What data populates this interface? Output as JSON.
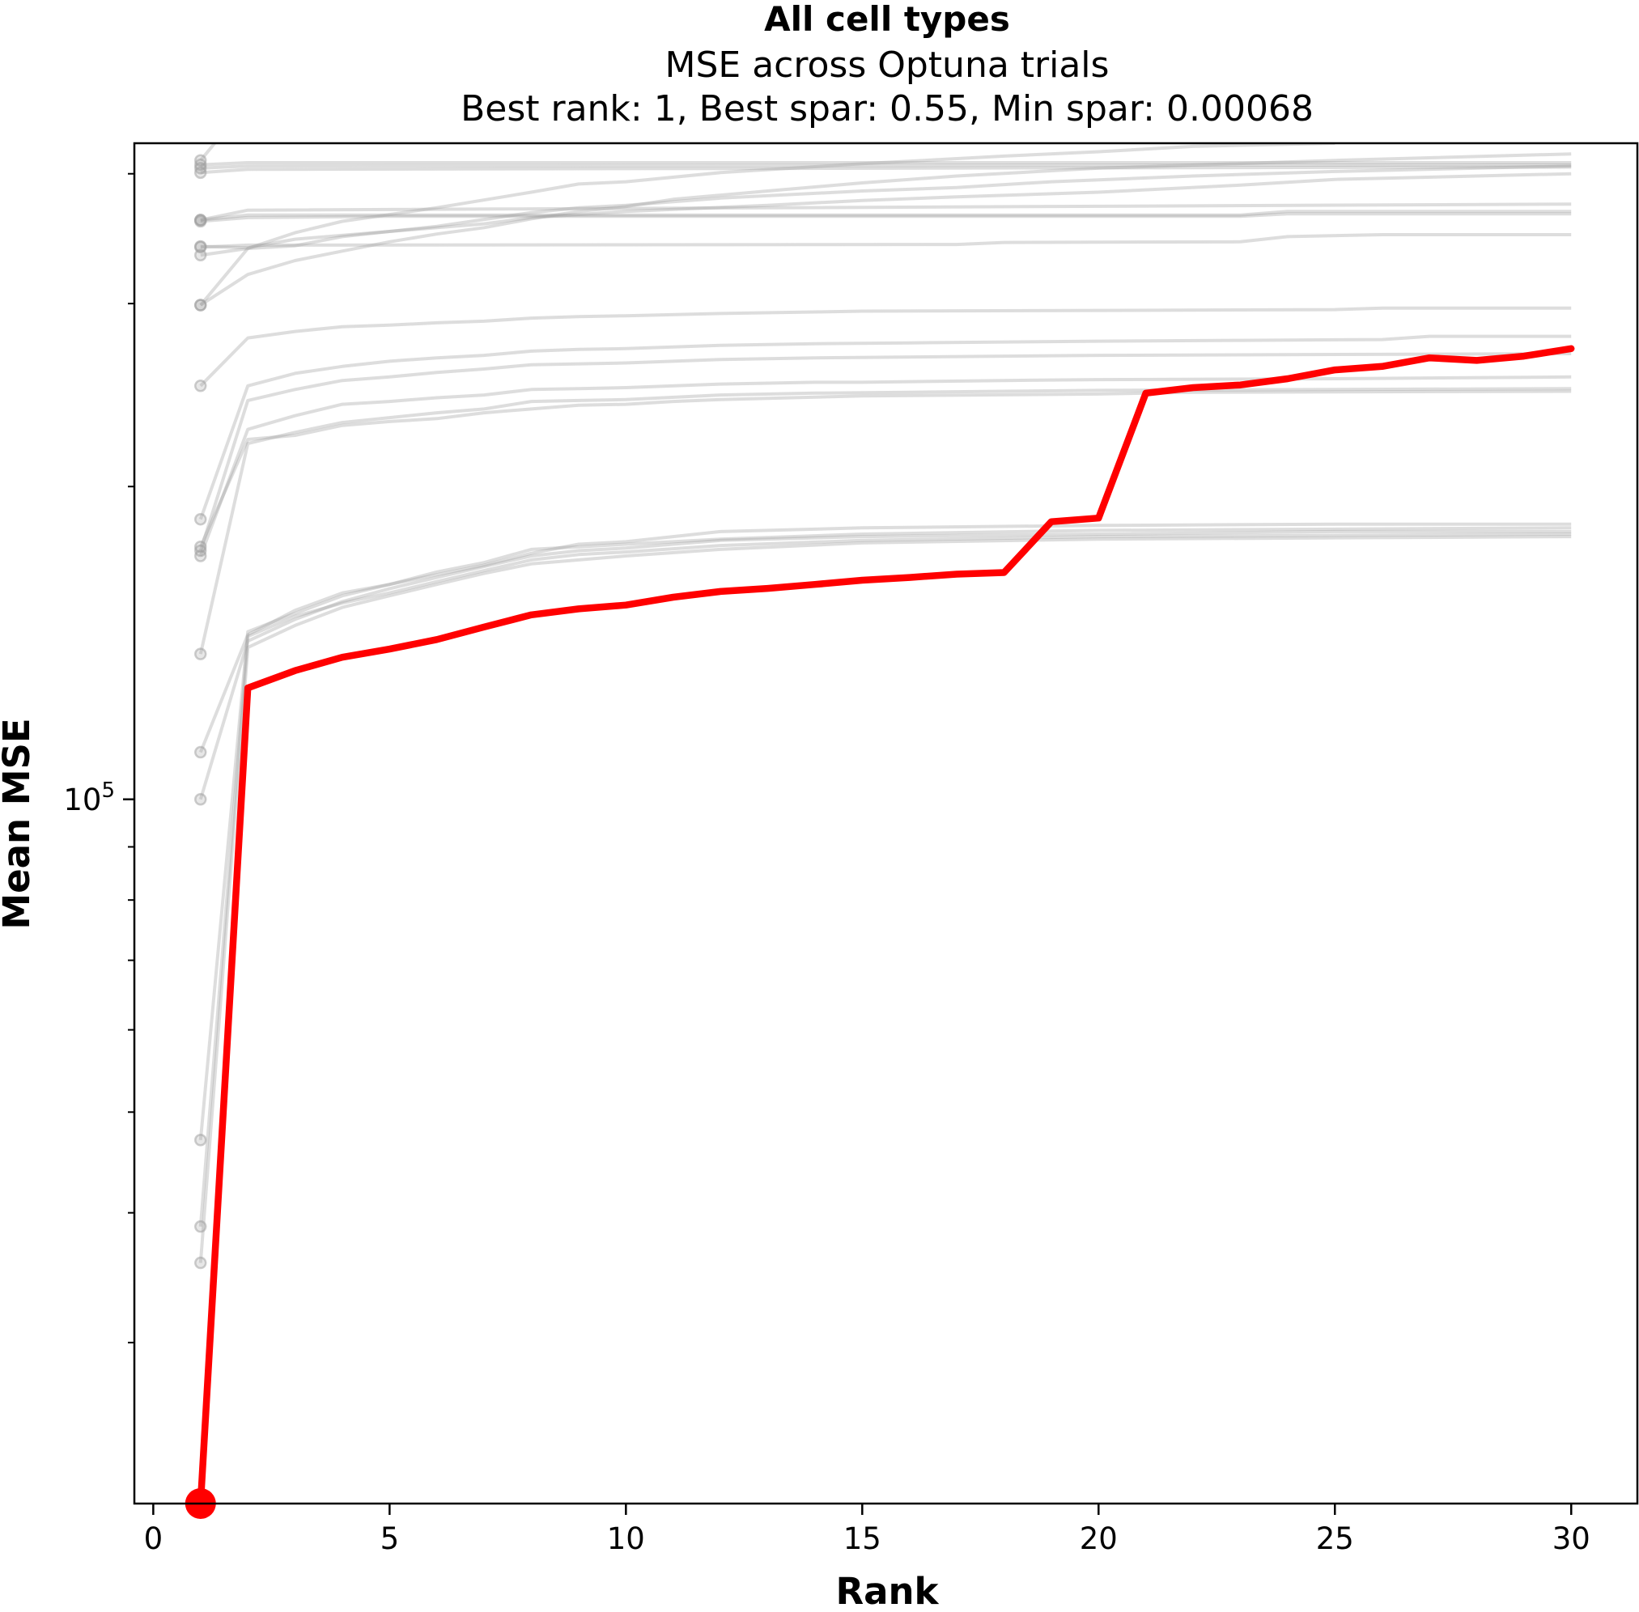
{
  "chart_data": {
    "type": "line",
    "title": "All cell types",
    "subtitle_lines": [
      "MSE across Optuna trials",
      "Best rank: 1, Best spar: 0.55, Min spar: 0.00068"
    ],
    "xlabel": "Rank",
    "ylabel": "Mean MSE",
    "xlim": [
      -0.4,
      31.4
    ],
    "ylim": [
      21000,
      428000
    ],
    "yscale": "log",
    "x_ticks": [
      0,
      5,
      10,
      15,
      20,
      25,
      30
    ],
    "y_major_ticks": [
      100000
    ],
    "y_major_tick_labels": [
      {
        "base": "10",
        "exp": "5"
      }
    ],
    "y_minor_ticks": [
      30000,
      40000,
      50000,
      60000,
      70000,
      80000,
      90000,
      200000,
      300000,
      400000
    ],
    "grid": false,
    "legend": "none",
    "colors": {
      "highlight": "#ff0000",
      "trials": "#9e9e9e"
    },
    "highlight_series": {
      "x": [
        1,
        2,
        3,
        4,
        5,
        6,
        7,
        8,
        9,
        10,
        11,
        12,
        13,
        14,
        15,
        16,
        17,
        18,
        19,
        20,
        21,
        22,
        23,
        24,
        25,
        26,
        27,
        28,
        29,
        30
      ],
      "y": [
        21000,
        128000,
        133000,
        137000,
        139500,
        142500,
        146500,
        150500,
        152500,
        153800,
        156500,
        158500,
        159600,
        161000,
        162500,
        163500,
        164700,
        165300,
        185000,
        186500,
        246000,
        249000,
        250500,
        254000,
        259000,
        261000,
        266000,
        264500,
        267000,
        271500
      ]
    },
    "trial_series": [
      {
        "start": 408000,
        "points": [
          [
            1,
            408000
          ],
          [
            2,
            410000
          ],
          [
            30,
            410000
          ]
        ]
      },
      {
        "start": 405000,
        "points": [
          [
            1,
            405000
          ],
          [
            2,
            407000
          ],
          [
            30,
            408000
          ]
        ]
      },
      {
        "start": 401000,
        "points": [
          [
            1,
            401000
          ],
          [
            2,
            404000
          ],
          [
            30,
            406000
          ]
        ]
      },
      {
        "start": 412000,
        "points": [
          [
            1,
            412000
          ],
          [
            1.3,
            428000
          ]
        ]
      },
      {
        "start": 361000,
        "points": [
          [
            1,
            361000
          ],
          [
            2,
            369000
          ],
          [
            30,
            374000
          ]
        ]
      },
      {
        "start": 360000,
        "points": [
          [
            1,
            360000
          ],
          [
            2,
            363000
          ],
          [
            5,
            364000
          ],
          [
            23,
            364000
          ],
          [
            24,
            366000
          ],
          [
            30,
            366000
          ]
        ]
      },
      {
        "start": 361000,
        "points": [
          [
            1,
            361000
          ],
          [
            2,
            365000
          ],
          [
            23,
            365000
          ],
          [
            24,
            368000
          ],
          [
            30,
            368000
          ]
        ]
      },
      {
        "start": 340000,
        "points": [
          [
            1,
            340000
          ],
          [
            2,
            341500
          ],
          [
            17,
            342000
          ],
          [
            18,
            343500
          ],
          [
            23,
            344000
          ],
          [
            24,
            348000
          ],
          [
            26,
            349500
          ],
          [
            30,
            349500
          ]
        ]
      },
      {
        "start": 340500,
        "points": [
          [
            1,
            340500
          ],
          [
            2,
            339500
          ],
          [
            3,
            346000
          ],
          [
            5,
            352000
          ],
          [
            7,
            358000
          ],
          [
            8,
            363000
          ],
          [
            10,
            368000
          ],
          [
            13,
            373000
          ],
          [
            15,
            377000
          ],
          [
            17,
            380000
          ],
          [
            20,
            384000
          ],
          [
            23,
            390000
          ],
          [
            25,
            395000
          ],
          [
            30,
            400000
          ]
        ]
      },
      {
        "start": 334000,
        "points": [
          [
            1,
            334000
          ],
          [
            2,
            339000
          ],
          [
            3,
            341000
          ],
          [
            4,
            348000
          ],
          [
            6,
            356000
          ],
          [
            8,
            367000
          ],
          [
            9,
            371000
          ],
          [
            10,
            373000
          ],
          [
            12,
            379000
          ],
          [
            15,
            385000
          ],
          [
            17,
            388000
          ],
          [
            19,
            393000
          ],
          [
            22,
            398000
          ],
          [
            25,
            402000
          ],
          [
            30,
            407000
          ]
        ]
      },
      {
        "start": 299000,
        "points": [
          [
            1,
            299000
          ],
          [
            2,
            320000
          ],
          [
            3,
            330000
          ],
          [
            4,
            337000
          ],
          [
            5,
            344000
          ],
          [
            6,
            350000
          ],
          [
            7,
            355000
          ],
          [
            8,
            362000
          ],
          [
            9,
            368000
          ],
          [
            10,
            372000
          ],
          [
            11,
            378000
          ],
          [
            13,
            385000
          ],
          [
            15,
            392000
          ],
          [
            17,
            398000
          ],
          [
            20,
            405000
          ],
          [
            25,
            412000
          ],
          [
            30,
            418000
          ]
        ]
      },
      {
        "start": 299000,
        "points": [
          [
            1,
            299000
          ],
          [
            2,
            339000
          ],
          [
            3,
            351000
          ],
          [
            4,
            360000
          ],
          [
            6,
            371000
          ],
          [
            8,
            384000
          ],
          [
            9,
            391000
          ],
          [
            10,
            393000
          ],
          [
            12,
            401000
          ],
          [
            15,
            409000
          ],
          [
            18,
            416000
          ],
          [
            20,
            420000
          ],
          [
            22,
            425000
          ],
          [
            25,
            428000
          ]
        ]
      },
      {
        "start": 250000,
        "points": [
          [
            1,
            250000
          ],
          [
            2,
            278000
          ],
          [
            3,
            282000
          ],
          [
            4,
            285000
          ],
          [
            5,
            286000
          ],
          [
            6,
            287500
          ],
          [
            7,
            288500
          ],
          [
            8,
            290500
          ],
          [
            9,
            291500
          ],
          [
            10,
            292000
          ],
          [
            12,
            293500
          ],
          [
            14,
            294500
          ],
          [
            15,
            295000
          ],
          [
            20,
            295500
          ],
          [
            25,
            296000
          ],
          [
            26,
            297000
          ],
          [
            30,
            297000
          ]
        ]
      },
      {
        "start": 186000,
        "points": [
          [
            1,
            186000
          ],
          [
            2,
            250000
          ],
          [
            3,
            257000
          ],
          [
            4,
            261000
          ],
          [
            5,
            264000
          ],
          [
            6,
            266000
          ],
          [
            7,
            267500
          ],
          [
            8,
            270000
          ],
          [
            9,
            271000
          ],
          [
            10,
            271500
          ],
          [
            12,
            273500
          ],
          [
            14,
            274500
          ],
          [
            16,
            275000
          ],
          [
            20,
            276000
          ],
          [
            23,
            276500
          ],
          [
            26,
            277000
          ],
          [
            27,
            279000
          ],
          [
            30,
            279000
          ]
        ]
      },
      {
        "start": 173500,
        "points": [
          [
            1,
            173500
          ],
          [
            2,
            242000
          ],
          [
            3,
            248000
          ],
          [
            4,
            253000
          ],
          [
            5,
            255000
          ],
          [
            6,
            257500
          ],
          [
            7,
            259500
          ],
          [
            8,
            262000
          ],
          [
            10,
            263000
          ],
          [
            12,
            265000
          ],
          [
            14,
            266000
          ],
          [
            18,
            267000
          ],
          [
            20,
            267500
          ],
          [
            30,
            268500
          ]
        ]
      },
      {
        "start": 171500,
        "points": [
          [
            1,
            171500
          ],
          [
            2,
            227000
          ],
          [
            3,
            234000
          ],
          [
            4,
            240000
          ],
          [
            5,
            241500
          ],
          [
            6,
            243500
          ],
          [
            7,
            245000
          ],
          [
            8,
            248000
          ],
          [
            9,
            248500
          ],
          [
            10,
            249000
          ],
          [
            12,
            251000
          ],
          [
            14,
            252000
          ],
          [
            15,
            252000
          ],
          [
            18,
            253000
          ],
          [
            20,
            253500
          ],
          [
            25,
            254000
          ],
          [
            30,
            255000
          ]
        ]
      },
      {
        "start": 138000,
        "points": [
          [
            1,
            138000
          ],
          [
            2,
            220000
          ],
          [
            3,
            225500
          ],
          [
            4,
            230500
          ],
          [
            5,
            233000
          ],
          [
            6,
            235500
          ],
          [
            7,
            237500
          ],
          [
            8,
            241500
          ],
          [
            9,
            242000
          ],
          [
            10,
            242500
          ],
          [
            12,
            245000
          ],
          [
            14,
            246000
          ],
          [
            16,
            246500
          ],
          [
            18,
            247000
          ],
          [
            20,
            247500
          ],
          [
            25,
            248000
          ],
          [
            30,
            248500
          ]
        ]
      },
      {
        "start": 175000,
        "points": [
          [
            1,
            175000
          ],
          [
            2,
            222000
          ],
          [
            3,
            224000
          ],
          [
            4,
            229000
          ],
          [
            5,
            231000
          ],
          [
            6,
            232500
          ],
          [
            7,
            235500
          ],
          [
            8,
            237500
          ],
          [
            9,
            239500
          ],
          [
            10,
            240000
          ],
          [
            11,
            241500
          ],
          [
            12,
            242500
          ],
          [
            15,
            244500
          ],
          [
            20,
            245500
          ],
          [
            22,
            246500
          ],
          [
            30,
            247000
          ]
        ]
      },
      {
        "start": 111000,
        "points": [
          [
            1,
            111000
          ],
          [
            2,
            144000
          ],
          [
            3,
            152000
          ],
          [
            4,
            158000
          ],
          [
            5,
            161000
          ],
          [
            6,
            164500
          ],
          [
            7,
            168000
          ],
          [
            8,
            172500
          ],
          [
            9,
            176000
          ],
          [
            10,
            177000
          ],
          [
            11,
            179000
          ],
          [
            12,
            181000
          ],
          [
            15,
            182500
          ],
          [
            20,
            183500
          ],
          [
            25,
            184000
          ],
          [
            30,
            184000
          ]
        ]
      },
      {
        "start": 100000,
        "points": [
          [
            1,
            100000
          ],
          [
            2,
            142000
          ],
          [
            3,
            149000
          ],
          [
            4,
            155000
          ],
          [
            5,
            159500
          ],
          [
            6,
            163500
          ],
          [
            7,
            167500
          ],
          [
            8,
            171500
          ],
          [
            9,
            173500
          ],
          [
            10,
            174500
          ],
          [
            11,
            176000
          ],
          [
            12,
            177500
          ],
          [
            15,
            179000
          ],
          [
            20,
            180000
          ],
          [
            25,
            181000
          ],
          [
            30,
            181000
          ]
        ]
      },
      {
        "start": 47000,
        "points": [
          [
            1,
            47000
          ],
          [
            2,
            145000
          ],
          [
            3,
            151000
          ],
          [
            4,
            157000
          ],
          [
            5,
            161000
          ],
          [
            6,
            165500
          ],
          [
            7,
            169000
          ],
          [
            8,
            174000
          ],
          [
            9,
            175000
          ],
          [
            10,
            176000
          ],
          [
            12,
            178000
          ],
          [
            15,
            180000
          ],
          [
            20,
            181500
          ],
          [
            30,
            182500
          ]
        ]
      },
      {
        "start": 38800,
        "points": [
          [
            1,
            38800
          ],
          [
            2,
            143500
          ],
          [
            3,
            150000
          ],
          [
            4,
            154500
          ],
          [
            5,
            158000
          ],
          [
            6,
            162000
          ],
          [
            7,
            166000
          ],
          [
            8,
            170000
          ],
          [
            9,
            172000
          ],
          [
            10,
            173000
          ],
          [
            12,
            175500
          ],
          [
            15,
            177500
          ],
          [
            20,
            179000
          ],
          [
            30,
            180000
          ]
        ]
      },
      {
        "start": 35800,
        "points": [
          [
            1,
            35800
          ],
          [
            2,
            140000
          ],
          [
            3,
            147000
          ],
          [
            4,
            153000
          ],
          [
            5,
            157000
          ],
          [
            6,
            161000
          ],
          [
            7,
            165000
          ],
          [
            8,
            168500
          ],
          [
            10,
            171500
          ],
          [
            12,
            174000
          ],
          [
            15,
            176500
          ],
          [
            20,
            178000
          ],
          [
            30,
            179000
          ]
        ]
      }
    ]
  }
}
